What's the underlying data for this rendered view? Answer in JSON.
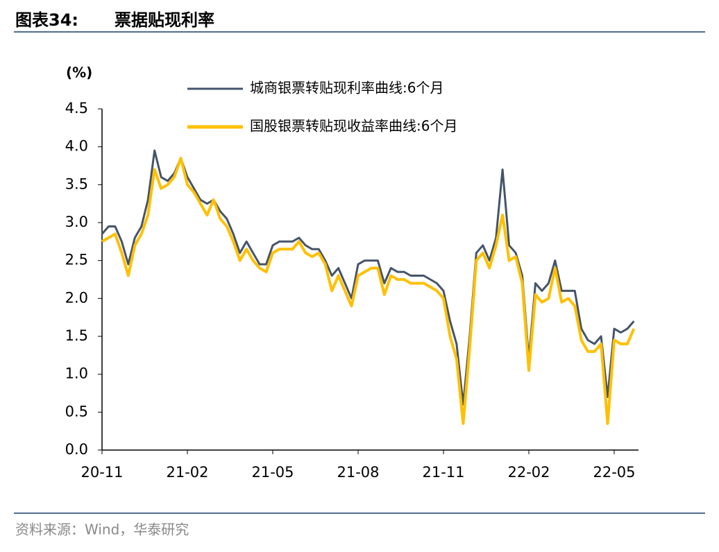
{
  "header": {
    "label": "图表34:",
    "title": "票据贴现利率"
  },
  "chart_data": {
    "type": "line",
    "y_label": "(%)",
    "categories": [
      "20-11",
      null,
      null,
      null,
      null,
      null,
      null,
      null,
      null,
      null,
      null,
      null,
      null,
      "21-02",
      null,
      null,
      null,
      null,
      null,
      null,
      null,
      null,
      null,
      null,
      null,
      null,
      "21-05",
      null,
      null,
      null,
      null,
      null,
      null,
      null,
      null,
      null,
      null,
      null,
      null,
      "21-08",
      null,
      null,
      null,
      null,
      null,
      null,
      null,
      null,
      null,
      null,
      null,
      null,
      "21-11",
      null,
      null,
      null,
      null,
      null,
      null,
      null,
      null,
      null,
      null,
      null,
      null,
      "22-02",
      null,
      null,
      null,
      null,
      null,
      null,
      null,
      null,
      null,
      null,
      null,
      null,
      "22-05",
      null,
      null,
      null
    ],
    "series": [
      {
        "name": "城商银票转贴现利率曲线:6个月",
        "color": "#44546a",
        "values": [
          2.85,
          2.95,
          2.95,
          2.75,
          2.45,
          2.8,
          2.95,
          3.3,
          3.95,
          3.6,
          3.55,
          3.65,
          3.85,
          3.6,
          3.45,
          3.3,
          3.25,
          3.3,
          3.15,
          3.05,
          2.85,
          2.6,
          2.75,
          2.6,
          2.45,
          2.45,
          2.7,
          2.75,
          2.75,
          2.75,
          2.8,
          2.7,
          2.65,
          2.65,
          2.5,
          2.3,
          2.4,
          2.2,
          2.0,
          2.45,
          2.5,
          2.5,
          2.5,
          2.2,
          2.4,
          2.35,
          2.35,
          2.3,
          2.3,
          2.3,
          2.25,
          2.2,
          2.1,
          1.7,
          1.4,
          0.6,
          1.5,
          2.6,
          2.7,
          2.5,
          2.8,
          3.7,
          2.7,
          2.6,
          2.3,
          1.2,
          2.2,
          2.1,
          2.2,
          2.5,
          2.1,
          2.1,
          2.1,
          1.6,
          1.45,
          1.4,
          1.5,
          0.7,
          1.6,
          1.55,
          1.6,
          1.7
        ]
      },
      {
        "name": "国股银票转贴现收益率曲线:6个月",
        "color": "#ffc000",
        "values": [
          2.75,
          2.8,
          2.85,
          2.6,
          2.3,
          2.7,
          2.85,
          3.1,
          3.7,
          3.45,
          3.5,
          3.6,
          3.85,
          3.5,
          3.4,
          3.25,
          3.1,
          3.3,
          3.05,
          2.95,
          2.75,
          2.5,
          2.65,
          2.5,
          2.4,
          2.35,
          2.6,
          2.65,
          2.65,
          2.65,
          2.75,
          2.6,
          2.55,
          2.6,
          2.45,
          2.1,
          2.3,
          2.1,
          1.9,
          2.3,
          2.35,
          2.4,
          2.4,
          2.05,
          2.3,
          2.25,
          2.25,
          2.2,
          2.2,
          2.2,
          2.15,
          2.1,
          2.0,
          1.5,
          1.2,
          0.35,
          1.35,
          2.5,
          2.6,
          2.4,
          2.7,
          3.1,
          2.5,
          2.55,
          2.2,
          1.05,
          2.05,
          1.95,
          2.0,
          2.4,
          1.95,
          2.0,
          1.9,
          1.45,
          1.3,
          1.3,
          1.4,
          0.35,
          1.45,
          1.4,
          1.4,
          1.6
        ]
      }
    ],
    "ylim": [
      0,
      4.5
    ],
    "yticks": [
      {
        "value": 0,
        "label": "0.0"
      },
      {
        "value": 0.5,
        "label": "0.5"
      },
      {
        "value": 1,
        "label": "1.0"
      },
      {
        "value": 1.5,
        "label": "1.5"
      },
      {
        "value": 2,
        "label": "2.0"
      },
      {
        "value": 2.5,
        "label": "2.5"
      },
      {
        "value": 3,
        "label": "3.0"
      },
      {
        "value": 3.5,
        "label": "3.5"
      },
      {
        "value": 4,
        "label": "4.0"
      },
      {
        "value": 4.5,
        "label": "4.5"
      }
    ]
  },
  "footer": {
    "source": "资料来源：Wind，华泰研究"
  }
}
